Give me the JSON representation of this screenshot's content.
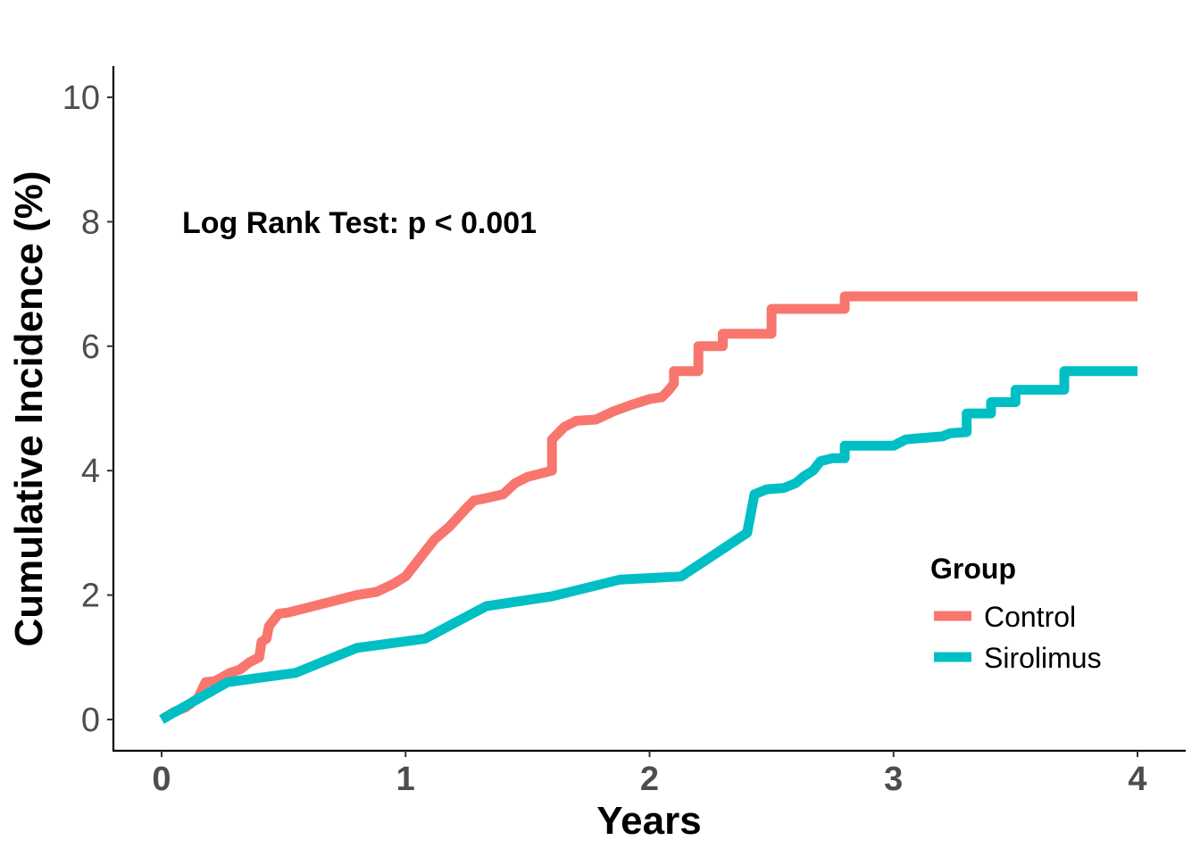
{
  "chart_data": {
    "type": "line",
    "step": true,
    "xlabel": "Years",
    "ylabel": "Cumulative Incidence (%)",
    "xlim": [
      -0.2,
      4.2
    ],
    "ylim": [
      -0.5,
      10.5
    ],
    "x_ticks": [
      "0",
      "1",
      "2",
      "3",
      "4"
    ],
    "y_ticks": [
      "0",
      "2",
      "4",
      "6",
      "8",
      "10"
    ],
    "grid": false,
    "annotation": "Log Rank Test: p < 0.001",
    "legend": {
      "title": "Group",
      "placement": "bottom-right",
      "entries": [
        "Control",
        "Sirolimus"
      ]
    },
    "series": [
      {
        "name": "Control",
        "color": "#F8766D",
        "points": [
          [
            0.0,
            0.0
          ],
          [
            0.05,
            0.12
          ],
          [
            0.1,
            0.2
          ],
          [
            0.15,
            0.35
          ],
          [
            0.18,
            0.6
          ],
          [
            0.22,
            0.62
          ],
          [
            0.28,
            0.75
          ],
          [
            0.32,
            0.8
          ],
          [
            0.36,
            0.92
          ],
          [
            0.4,
            1.0
          ],
          [
            0.41,
            1.25
          ],
          [
            0.43,
            1.3
          ],
          [
            0.44,
            1.5
          ],
          [
            0.46,
            1.6
          ],
          [
            0.48,
            1.7
          ],
          [
            0.52,
            1.72
          ],
          [
            0.58,
            1.78
          ],
          [
            0.65,
            1.85
          ],
          [
            0.72,
            1.92
          ],
          [
            0.8,
            2.0
          ],
          [
            0.88,
            2.05
          ],
          [
            0.95,
            2.18
          ],
          [
            1.0,
            2.3
          ],
          [
            1.05,
            2.55
          ],
          [
            1.12,
            2.9
          ],
          [
            1.18,
            3.1
          ],
          [
            1.25,
            3.4
          ],
          [
            1.28,
            3.52
          ],
          [
            1.32,
            3.55
          ],
          [
            1.4,
            3.62
          ],
          [
            1.45,
            3.8
          ],
          [
            1.5,
            3.9
          ],
          [
            1.55,
            3.95
          ],
          [
            1.6,
            4.0
          ],
          [
            1.6,
            4.5
          ],
          [
            1.65,
            4.7
          ],
          [
            1.7,
            4.8
          ],
          [
            1.78,
            4.82
          ],
          [
            1.85,
            4.95
          ],
          [
            1.92,
            5.05
          ],
          [
            2.0,
            5.15
          ],
          [
            2.05,
            5.18
          ],
          [
            2.08,
            5.3
          ],
          [
            2.1,
            5.4
          ],
          [
            2.1,
            5.6
          ],
          [
            2.2,
            5.6
          ],
          [
            2.2,
            6.0
          ],
          [
            2.3,
            6.0
          ],
          [
            2.3,
            6.2
          ],
          [
            2.5,
            6.2
          ],
          [
            2.5,
            6.6
          ],
          [
            2.8,
            6.6
          ],
          [
            2.8,
            6.8
          ],
          [
            4.0,
            6.8
          ]
        ]
      },
      {
        "name": "Sirolimus",
        "color": "#00BFC4",
        "points": [
          [
            0.0,
            0.0
          ],
          [
            0.27,
            0.6
          ],
          [
            0.55,
            0.75
          ],
          [
            0.8,
            1.15
          ],
          [
            1.08,
            1.3
          ],
          [
            1.33,
            1.82
          ],
          [
            1.6,
            1.98
          ],
          [
            1.88,
            2.25
          ],
          [
            2.13,
            2.3
          ],
          [
            2.4,
            3.0
          ],
          [
            2.43,
            3.62
          ],
          [
            2.48,
            3.7
          ],
          [
            2.55,
            3.72
          ],
          [
            2.6,
            3.8
          ],
          [
            2.63,
            3.9
          ],
          [
            2.67,
            4.0
          ],
          [
            2.7,
            4.15
          ],
          [
            2.75,
            4.2
          ],
          [
            2.8,
            4.2
          ],
          [
            2.8,
            4.4
          ],
          [
            3.0,
            4.4
          ],
          [
            3.05,
            4.5
          ],
          [
            3.1,
            4.52
          ],
          [
            3.2,
            4.55
          ],
          [
            3.23,
            4.6
          ],
          [
            3.3,
            4.62
          ],
          [
            3.3,
            4.92
          ],
          [
            3.4,
            4.92
          ],
          [
            3.4,
            5.1
          ],
          [
            3.5,
            5.1
          ],
          [
            3.5,
            5.3
          ],
          [
            3.7,
            5.3
          ],
          [
            3.7,
            5.6
          ],
          [
            4.0,
            5.6
          ]
        ]
      }
    ]
  }
}
